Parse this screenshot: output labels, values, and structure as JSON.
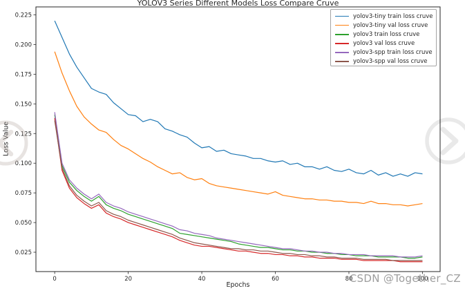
{
  "watermark": {
    "text": "CSDN @Together_CZ"
  },
  "carousel": {
    "prev_icon": "chevron-left-circle-icon",
    "next_icon": "chevron-right-circle-icon"
  },
  "colors": {
    "axis": "#262626",
    "legend_border": "#a3a3a3",
    "watermark_gray": "#8c8c8c",
    "background": "#ffffff"
  },
  "chart_data": {
    "type": "line",
    "title": "YOLOV3 Series Different Models Loss Compare Cruve",
    "xlabel": "Epochs",
    "ylabel": "Loss Value",
    "grid": false,
    "legend_position": "upper right",
    "xlim": [
      -5.1,
      104.8
    ],
    "ylim": [
      0.0087,
      0.2317
    ],
    "x_ticks": [
      0,
      20,
      40,
      60,
      80,
      100
    ],
    "x_tick_labels": [
      "0",
      "20",
      "40",
      "60",
      "80",
      "100"
    ],
    "y_ticks": [
      0.025,
      0.05,
      0.075,
      0.1,
      0.125,
      0.15,
      0.175,
      0.2,
      0.225
    ],
    "y_tick_labels": [
      "0.025",
      "0.050",
      "0.075",
      "0.100",
      "0.125",
      "0.150",
      "0.175",
      "0.200",
      "0.225"
    ],
    "x": [
      0,
      2,
      4,
      6,
      8,
      10,
      12,
      14,
      16,
      18,
      20,
      22,
      24,
      26,
      28,
      30,
      32,
      34,
      36,
      38,
      40,
      42,
      44,
      46,
      48,
      50,
      52,
      54,
      56,
      58,
      60,
      62,
      64,
      66,
      68,
      70,
      72,
      74,
      76,
      78,
      80,
      82,
      84,
      86,
      88,
      90,
      92,
      94,
      96,
      98,
      100
    ],
    "series": [
      {
        "name": "yolov3-tiny train loss cruve",
        "color": "#1f77b4",
        "values": [
          0.22,
          0.206,
          0.192,
          0.181,
          0.172,
          0.163,
          0.16,
          0.158,
          0.151,
          0.146,
          0.141,
          0.14,
          0.135,
          0.137,
          0.135,
          0.129,
          0.127,
          0.124,
          0.122,
          0.117,
          0.113,
          0.114,
          0.11,
          0.111,
          0.108,
          0.107,
          0.106,
          0.104,
          0.104,
          0.102,
          0.101,
          0.102,
          0.099,
          0.1,
          0.097,
          0.097,
          0.095,
          0.097,
          0.094,
          0.093,
          0.095,
          0.092,
          0.091,
          0.094,
          0.09,
          0.092,
          0.089,
          0.091,
          0.089,
          0.092,
          0.091
        ]
      },
      {
        "name": "yolov3-tiny val loss cruve",
        "color": "#ff7f0e",
        "values": [
          0.194,
          0.176,
          0.161,
          0.148,
          0.139,
          0.133,
          0.128,
          0.126,
          0.12,
          0.115,
          0.112,
          0.108,
          0.104,
          0.101,
          0.097,
          0.094,
          0.091,
          0.092,
          0.088,
          0.086,
          0.087,
          0.083,
          0.081,
          0.08,
          0.079,
          0.078,
          0.077,
          0.076,
          0.075,
          0.074,
          0.076,
          0.073,
          0.072,
          0.071,
          0.07,
          0.07,
          0.069,
          0.069,
          0.068,
          0.068,
          0.067,
          0.067,
          0.066,
          0.068,
          0.066,
          0.066,
          0.065,
          0.065,
          0.064,
          0.065,
          0.066
        ]
      },
      {
        "name": "yolov3 train loss cruve",
        "color": "#2ca02c",
        "values": [
          0.141,
          0.098,
          0.084,
          0.077,
          0.072,
          0.068,
          0.072,
          0.065,
          0.062,
          0.06,
          0.057,
          0.055,
          0.053,
          0.051,
          0.049,
          0.047,
          0.045,
          0.041,
          0.04,
          0.039,
          0.038,
          0.037,
          0.036,
          0.035,
          0.034,
          0.032,
          0.031,
          0.03,
          0.029,
          0.029,
          0.028,
          0.027,
          0.027,
          0.026,
          0.026,
          0.025,
          0.025,
          0.024,
          0.024,
          0.023,
          0.023,
          0.022,
          0.022,
          0.022,
          0.021,
          0.021,
          0.021,
          0.021,
          0.02,
          0.02,
          0.021
        ]
      },
      {
        "name": "yolov3 val loss cruve",
        "color": "#d62728",
        "values": [
          0.138,
          0.094,
          0.079,
          0.071,
          0.066,
          0.062,
          0.065,
          0.058,
          0.055,
          0.053,
          0.05,
          0.048,
          0.046,
          0.044,
          0.042,
          0.04,
          0.038,
          0.035,
          0.033,
          0.031,
          0.03,
          0.03,
          0.029,
          0.028,
          0.027,
          0.026,
          0.026,
          0.025,
          0.024,
          0.024,
          0.023,
          0.023,
          0.022,
          0.022,
          0.021,
          0.021,
          0.02,
          0.02,
          0.02,
          0.019,
          0.019,
          0.019,
          0.018,
          0.018,
          0.018,
          0.018,
          0.018,
          0.017,
          0.017,
          0.017,
          0.017
        ]
      },
      {
        "name": "yolov3-spp train loss cruve",
        "color": "#9467bd",
        "values": [
          0.143,
          0.1,
          0.086,
          0.079,
          0.074,
          0.07,
          0.074,
          0.067,
          0.064,
          0.062,
          0.059,
          0.057,
          0.055,
          0.053,
          0.051,
          0.049,
          0.047,
          0.044,
          0.043,
          0.041,
          0.04,
          0.039,
          0.037,
          0.036,
          0.035,
          0.034,
          0.033,
          0.032,
          0.031,
          0.03,
          0.029,
          0.028,
          0.028,
          0.027,
          0.026,
          0.026,
          0.025,
          0.025,
          0.024,
          0.024,
          0.023,
          0.023,
          0.023,
          0.022,
          0.022,
          0.022,
          0.022,
          0.021,
          0.021,
          0.021,
          0.022
        ]
      },
      {
        "name": "yolov3-spp val loss cruve",
        "color": "#8c564b",
        "values": [
          0.136,
          0.096,
          0.081,
          0.073,
          0.068,
          0.064,
          0.067,
          0.06,
          0.057,
          0.055,
          0.052,
          0.05,
          0.048,
          0.046,
          0.044,
          0.042,
          0.04,
          0.037,
          0.035,
          0.033,
          0.032,
          0.031,
          0.03,
          0.029,
          0.028,
          0.028,
          0.027,
          0.027,
          0.026,
          0.026,
          0.025,
          0.024,
          0.024,
          0.023,
          0.023,
          0.022,
          0.022,
          0.021,
          0.021,
          0.02,
          0.02,
          0.02,
          0.019,
          0.019,
          0.019,
          0.019,
          0.018,
          0.018,
          0.018,
          0.018,
          0.018
        ]
      }
    ]
  }
}
